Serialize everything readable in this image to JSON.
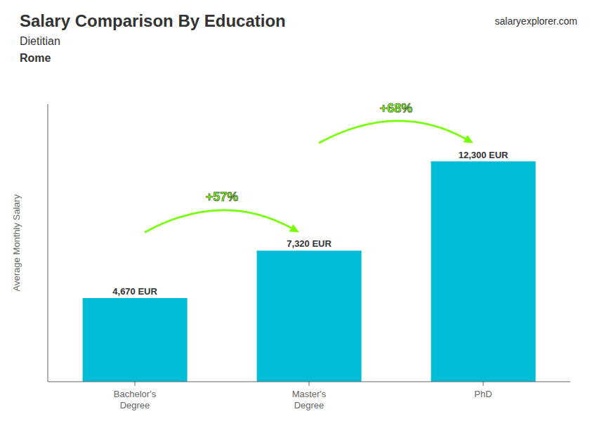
{
  "chart_data": {
    "type": "bar",
    "title": "Salary Comparison By Education",
    "subtitle": [
      "Dietitian",
      "Rome"
    ],
    "ylabel": "Average Monthly Salary",
    "categories": [
      "Bachelor's\nDegree",
      "Master's\nDegree",
      "PhD"
    ],
    "values": [
      4670,
      7320,
      12300
    ],
    "value_labels": [
      "4,670 EUR",
      "7,320 EUR",
      "12,300 EUR"
    ],
    "data_labels": true,
    "color": "#00bcd4",
    "ylim": [
      0,
      15500
    ],
    "grid": false,
    "tick_labels": "x",
    "annotations": [
      {
        "text": "+57%",
        "from": "Bachelor's\nDegree",
        "to": "Master's\nDegree",
        "color": "#76ff03"
      },
      {
        "text": "+68%",
        "from": "Master's\nDegree",
        "to": "PhD",
        "color": "#76ff03"
      },
      {
        "text": "salaryexplorer.com"
      }
    ]
  }
}
